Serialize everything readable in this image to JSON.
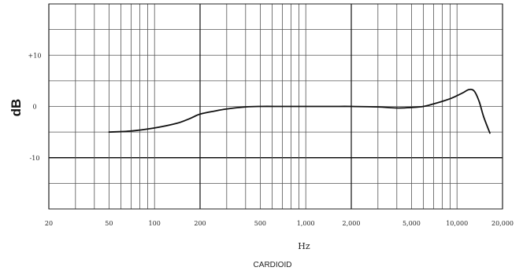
{
  "chart_data": {
    "type": "line",
    "xscale": "log",
    "xlim": [
      20,
      20000
    ],
    "ylim": [
      -20,
      20
    ],
    "grid": true,
    "xlabel": "Hz",
    "ylabel": "dB",
    "caption": "CARDIOID",
    "x_ticks": [
      {
        "value": 20,
        "label": "20"
      },
      {
        "value": 50,
        "label": "50"
      },
      {
        "value": 100,
        "label": "100"
      },
      {
        "value": 200,
        "label": "200"
      },
      {
        "value": 500,
        "label": "500"
      },
      {
        "value": 1000,
        "label": "1,000"
      },
      {
        "value": 2000,
        "label": "2,000"
      },
      {
        "value": 5000,
        "label": "5,000"
      },
      {
        "value": 10000,
        "label": "10,000"
      },
      {
        "value": 20000,
        "label": "20,000"
      }
    ],
    "y_ticks": [
      {
        "value": 10,
        "label": "+10"
      },
      {
        "value": 0,
        "label": "0"
      },
      {
        "value": -10,
        "label": "-10"
      }
    ],
    "series": [
      {
        "x": [
          50,
          70,
          100,
          140,
          170,
          200,
          250,
          300,
          400,
          500,
          700,
          1000,
          1500,
          2000,
          3000,
          4000,
          5000,
          6000,
          7000,
          8000,
          9000,
          10000,
          11000,
          12000,
          13000,
          14000,
          15000,
          16500
        ],
        "y": [
          -5,
          -4.8,
          -4.2,
          -3.3,
          -2.4,
          -1.5,
          -0.9,
          -0.5,
          -0.1,
          0,
          0,
          0,
          0,
          0,
          -0.1,
          -0.3,
          -0.2,
          0,
          0.5,
          1.0,
          1.5,
          2.1,
          2.7,
          3.3,
          3.0,
          1.0,
          -2.0,
          -5.2
        ]
      }
    ]
  }
}
